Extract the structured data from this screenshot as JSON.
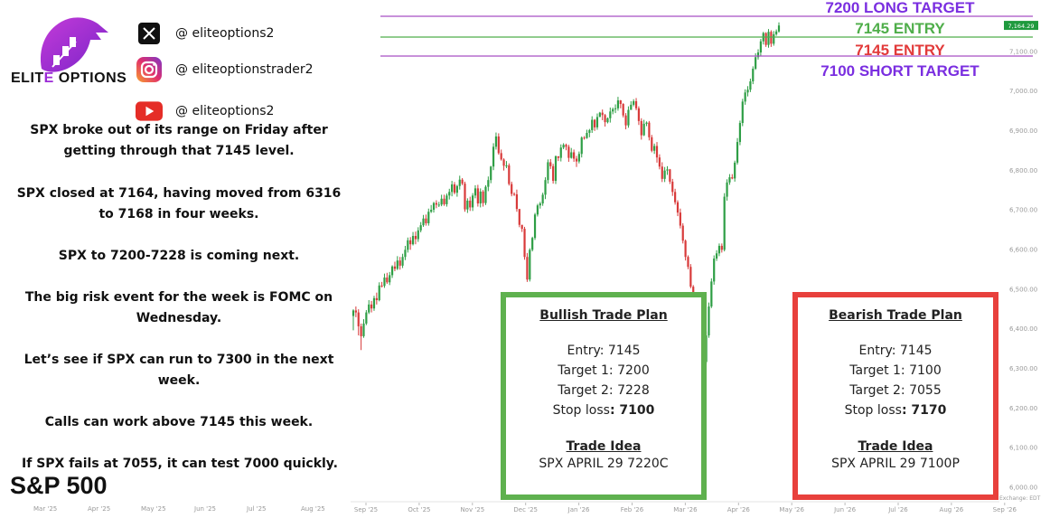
{
  "brand": {
    "name_pre": "ELITE",
    "name_post": " OPTIONS",
    "accent_color": "#9b2bd6"
  },
  "socials": [
    {
      "icon": "x-icon",
      "handle": "@ eliteoptions2"
    },
    {
      "icon": "instagram-icon",
      "handle": "@ eliteoptionstrader2"
    },
    {
      "icon": "youtube-icon",
      "handle": "@ eliteoptions2"
    }
  ],
  "commentary": [
    "SPX broke out of its range on Friday after getting through that 7145 level.",
    "SPX closed at 7164, having moved from 6316 to 7168 in four weeks.",
    "SPX to 7200-7228 is coming next.",
    "The big risk event for the week is FOMC on Wednesday.",
    "Let’s see if SPX can run to 7300 in the next week.",
    "Calls can work above 7145 this week.",
    "If SPX fails at 7055, it can test 7000 quickly."
  ],
  "index_name": "S&P 500",
  "mini_axis_labels": [
    "Mar '25",
    "Apr '25",
    "May '25",
    "Jun '25",
    "Jul '25",
    "Aug '25"
  ],
  "bullish": {
    "title": "Bullish Trade Plan",
    "entry": "Entry: 7145",
    "t1": "Target 1: 7200",
    "t2": "Target 2: 7228",
    "stop_label": "Stop loss",
    "stop_value": ": 7100",
    "idea_title": "Trade Idea",
    "idea": "SPX APRIL 29 7220C",
    "color": "#5fb14f"
  },
  "bearish": {
    "title": "Bearish Trade Plan",
    "entry": "Entry: 7145",
    "t1": "Target 1: 7100",
    "t2": "Target 2: 7055",
    "stop_label": "Stop loss",
    "stop_value": ": 7170",
    "idea_title": "Trade Idea",
    "idea": "SPX APRIL 29 7100P",
    "color": "#e8403c"
  },
  "chart_data": {
    "type": "candlestick",
    "y_ticks": [
      6000,
      6100,
      6200,
      6300,
      6400,
      6500,
      6600,
      6700,
      6800,
      6900,
      7000,
      7100
    ],
    "y_tick_labels": [
      "6,000.00",
      "6,100.00",
      "6,200.00",
      "6,300.00",
      "6,400.00",
      "6,500.00",
      "6,600.00",
      "6,700.00",
      "6,800.00",
      "6,900.00",
      "7,000.00",
      "7,100.00"
    ],
    "x_tick_labels": [
      "Sep '25",
      "Oct '25",
      "Nov '25",
      "Dec '25",
      "Jan '26",
      "Feb '26",
      "Mar '26",
      "Apr '26",
      "May '26",
      "Jun '26",
      "Jul '26",
      "Aug '26",
      "Sep '26"
    ],
    "ylim": [
      5970,
      7265
    ],
    "last_price": 7164.29,
    "last_price_label": "7,164.29",
    "exchange_label": "Exchange: EDT",
    "grid": false,
    "levels": [
      {
        "label": "7200 LONG TARGET",
        "value": 7200,
        "color": "#7a2ee0",
        "line_color": "#a64fc4"
      },
      {
        "label": "7145 ENTRY",
        "value": 7145,
        "color": "#4fae4a",
        "line_color": "#4fae4a"
      },
      {
        "label": "7145 ENTRY",
        "value": 7145,
        "color": "#e23a3a",
        "line_color": null
      },
      {
        "label": "7100 SHORT TARGET",
        "value": 7100,
        "color": "#7a2ee0",
        "line_color": "#a64fc4"
      }
    ],
    "candles": [
      [
        6431,
        6445,
        6395,
        6448
      ],
      [
        6445,
        6440,
        6428,
        6455
      ],
      [
        6440,
        6405,
        6382,
        6448
      ],
      [
        6405,
        6380,
        6345,
        6412
      ],
      [
        6380,
        6412,
        6376,
        6423
      ],
      [
        6412,
        6440,
        6408,
        6446
      ],
      [
        6440,
        6460,
        6436,
        6471
      ],
      [
        6460,
        6450,
        6440,
        6469
      ],
      [
        6450,
        6476,
        6444,
        6482
      ],
      [
        6476,
        6471,
        6460,
        6490
      ],
      [
        6471,
        6508,
        6468,
        6516
      ],
      [
        6508,
        6507,
        6503,
        6517
      ],
      [
        6507,
        6528,
        6502,
        6538
      ],
      [
        6528,
        6516,
        6512,
        6540
      ],
      [
        6516,
        6534,
        6509,
        6542
      ],
      [
        6534,
        6556,
        6527,
        6559
      ],
      [
        6556,
        6550,
        6544,
        6568
      ],
      [
        6550,
        6571,
        6547,
        6582
      ],
      [
        6571,
        6558,
        6548,
        6580
      ],
      [
        6558,
        6580,
        6552,
        6588
      ],
      [
        6580,
        6598,
        6572,
        6608
      ],
      [
        6598,
        6622,
        6591,
        6629
      ],
      [
        6622,
        6612,
        6598,
        6630
      ],
      [
        6612,
        6633,
        6609,
        6643
      ],
      [
        6633,
        6625,
        6612,
        6644
      ],
      [
        6625,
        6647,
        6618,
        6655
      ],
      [
        6647,
        6660,
        6642,
        6668
      ],
      [
        6660,
        6677,
        6656,
        6686
      ],
      [
        6677,
        6665,
        6659,
        6687
      ],
      [
        6665,
        6694,
        6659,
        6702
      ],
      [
        6694,
        6699,
        6691,
        6711
      ],
      [
        6699,
        6716,
        6692,
        6719
      ],
      [
        6716,
        6712,
        6703,
        6723
      ],
      [
        6712,
        6712,
        6706,
        6719
      ],
      [
        6712,
        6727,
        6708,
        6737
      ],
      [
        6727,
        6713,
        6709,
        6737
      ],
      [
        6713,
        6735,
        6707,
        6740
      ],
      [
        6735,
        6744,
        6725,
        6752
      ],
      [
        6744,
        6763,
        6733,
        6772
      ],
      [
        6763,
        6742,
        6738,
        6769
      ],
      [
        6742,
        6759,
        6732,
        6762
      ],
      [
        6759,
        6775,
        6750,
        6785
      ],
      [
        6775,
        6765,
        6761,
        6779
      ],
      [
        6765,
        6700,
        6694,
        6770
      ],
      [
        6700,
        6722,
        6691,
        6728
      ],
      [
        6722,
        6705,
        6696,
        6732
      ],
      [
        6705,
        6735,
        6696,
        6741
      ],
      [
        6735,
        6753,
        6728,
        6761
      ],
      [
        6753,
        6715,
        6707,
        6762
      ],
      [
        6715,
        6745,
        6705,
        6753
      ],
      [
        6745,
        6716,
        6707,
        6749
      ],
      [
        6716,
        6757,
        6711,
        6761
      ],
      [
        6757,
        6774,
        6746,
        6783
      ],
      [
        6774,
        6808,
        6766,
        6810
      ],
      [
        6808,
        6858,
        6799,
        6867
      ],
      [
        6858,
        6884,
        6851,
        6894
      ],
      [
        6884,
        6842,
        6838,
        6892
      ],
      [
        6842,
        6826,
        6823,
        6851
      ],
      [
        6826,
        6810,
        6798,
        6829
      ],
      [
        6810,
        6811,
        6804,
        6822
      ],
      [
        6811,
        6764,
        6760,
        6816
      ],
      [
        6764,
        6739,
        6733,
        6770
      ],
      [
        6739,
        6738,
        6734,
        6743
      ],
      [
        6738,
        6701,
        6694,
        6750
      ],
      [
        6701,
        6661,
        6655,
        6701
      ],
      [
        6661,
        6651,
        6643,
        6661
      ],
      [
        6651,
        6580,
        6573,
        6656
      ],
      [
        6580,
        6523,
        6517,
        6590
      ],
      [
        6523,
        6598,
        6518,
        6602
      ],
      [
        6598,
        6628,
        6594,
        6631
      ],
      [
        6628,
        6687,
        6623,
        6691
      ],
      [
        6687,
        6710,
        6682,
        6714
      ],
      [
        6710,
        6715,
        6702,
        6719
      ],
      [
        6715,
        6737,
        6709,
        6742
      ],
      [
        6737,
        6774,
        6726,
        6781
      ],
      [
        6774,
        6819,
        6765,
        6826
      ],
      [
        6819,
        6809,
        6802,
        6827
      ],
      [
        6809,
        6772,
        6765,
        6815
      ],
      [
        6772,
        6834,
        6764,
        6836
      ],
      [
        6834,
        6830,
        6822,
        6834
      ],
      [
        6830,
        6856,
        6821,
        6864
      ],
      [
        6856,
        6863,
        6852,
        6867
      ],
      [
        6863,
        6858,
        6849,
        6866
      ],
      [
        6858,
        6830,
        6820,
        6863
      ],
      [
        6830,
        6844,
        6828,
        6855
      ],
      [
        6844,
        6828,
        6820,
        6851
      ],
      [
        6828,
        6821,
        6807,
        6835
      ],
      [
        6821,
        6840,
        6816,
        6846
      ],
      [
        6840,
        6881,
        6831,
        6884
      ],
      [
        6881,
        6880,
        6876,
        6885
      ],
      [
        6880,
        6893,
        6878,
        6901
      ],
      [
        6893,
        6900,
        6882,
        6903
      ],
      [
        6900,
        6926,
        6893,
        6935
      ],
      [
        6926,
        6907,
        6898,
        6928
      ],
      [
        6907,
        6933,
        6901,
        6942
      ],
      [
        6933,
        6944,
        6934,
        6946
      ],
      [
        6944,
        6938,
        6925,
        6952
      ],
      [
        6938,
        6920,
        6909,
        6941
      ],
      [
        6920,
        6930,
        6917,
        6932
      ],
      [
        6930,
        6947,
        6919,
        6957
      ],
      [
        6947,
        6953,
        6940,
        6957
      ],
      [
        6953,
        6955,
        6943,
        6965
      ],
      [
        6955,
        6975,
        6949,
        6984
      ],
      [
        6975,
        6966,
        6955,
        6976
      ],
      [
        6966,
        6937,
        6932,
        6968
      ],
      [
        6937,
        6912,
        6902,
        6943
      ],
      [
        6912,
        6951,
        6906,
        6960
      ],
      [
        6951,
        6964,
        6955,
        6973
      ],
      [
        6964,
        6973,
        6960,
        6978
      ],
      [
        6973,
        6955,
        6950,
        6981
      ],
      [
        6955,
        6923,
        6913,
        6960
      ],
      [
        6923,
        6887,
        6876,
        6930
      ],
      [
        6887,
        6916,
        6885,
        6926
      ],
      [
        6916,
        6919,
        6910,
        6922
      ],
      [
        6919,
        6882,
        6874,
        6923
      ],
      [
        6882,
        6848,
        6844,
        6888
      ],
      [
        6848,
        6860,
        6840,
        6866
      ],
      [
        6860,
        6831,
        6818,
        6870
      ],
      [
        6831,
        6808,
        6801,
        6839
      ],
      [
        6808,
        6777,
        6769,
        6819
      ],
      [
        6777,
        6798,
        6769,
        6807
      ],
      [
        6798,
        6801,
        6787,
        6809
      ],
      [
        6801,
        6770,
        6764,
        6802
      ],
      [
        6770,
        6744,
        6734,
        6777
      ],
      [
        6744,
        6718,
        6712,
        6752
      ],
      [
        6718,
        6692,
        6683,
        6723
      ],
      [
        6692,
        6659,
        6652,
        6702
      ],
      [
        6659,
        6621,
        6614,
        6665
      ],
      [
        6621,
        6580,
        6571,
        6624
      ],
      [
        6580,
        6555,
        6549,
        6584
      ],
      [
        6555,
        6505,
        6501,
        6562
      ],
      [
        6505,
        6469,
        6461,
        6509
      ],
      [
        6469,
        6426,
        6416,
        6477
      ],
      [
        6426,
        6381,
        6373,
        6432
      ],
      [
        6381,
        6340,
        6332,
        6384
      ],
      [
        6340,
        6315,
        6305,
        6349
      ],
      [
        6315,
        6382,
        6309,
        6392
      ],
      [
        6382,
        6455,
        6376,
        6465
      ],
      [
        6455,
        6518,
        6451,
        6526
      ],
      [
        6518,
        6576,
        6510,
        6584
      ],
      [
        6576,
        6589,
        6570,
        6597
      ],
      [
        6589,
        6608,
        6582,
        6614
      ],
      [
        6608,
        6598,
        6591,
        6614
      ],
      [
        6598,
        6732,
        6594,
        6741
      ],
      [
        6732,
        6768,
        6722,
        6776
      ],
      [
        6768,
        6781,
        6762,
        6789
      ],
      [
        6781,
        6778,
        6776,
        6789
      ],
      [
        6778,
        6818,
        6770,
        6823
      ],
      [
        6818,
        6870,
        6813,
        6880
      ],
      [
        6870,
        6918,
        6862,
        6924
      ],
      [
        6918,
        6972,
        6910,
        6979
      ],
      [
        6972,
        6995,
        6964,
        7003
      ],
      [
        6995,
        7002,
        6985,
        7011
      ],
      [
        7002,
        7023,
        6996,
        7030
      ],
      [
        7023,
        7055,
        7016,
        7061
      ],
      [
        7055,
        7084,
        7052,
        7094
      ],
      [
        7084,
        7096,
        7078,
        7104
      ],
      [
        7096,
        7124,
        7088,
        7130
      ],
      [
        7124,
        7145,
        7116,
        7148
      ],
      [
        7145,
        7115,
        7110,
        7147
      ],
      [
        7115,
        7148,
        7108,
        7155
      ],
      [
        7148,
        7118,
        7110,
        7152
      ],
      [
        7118,
        7142,
        7113,
        7150
      ],
      [
        7142,
        7149,
        7138,
        7154
      ],
      [
        7149,
        7164,
        7146,
        7172
      ]
    ]
  }
}
